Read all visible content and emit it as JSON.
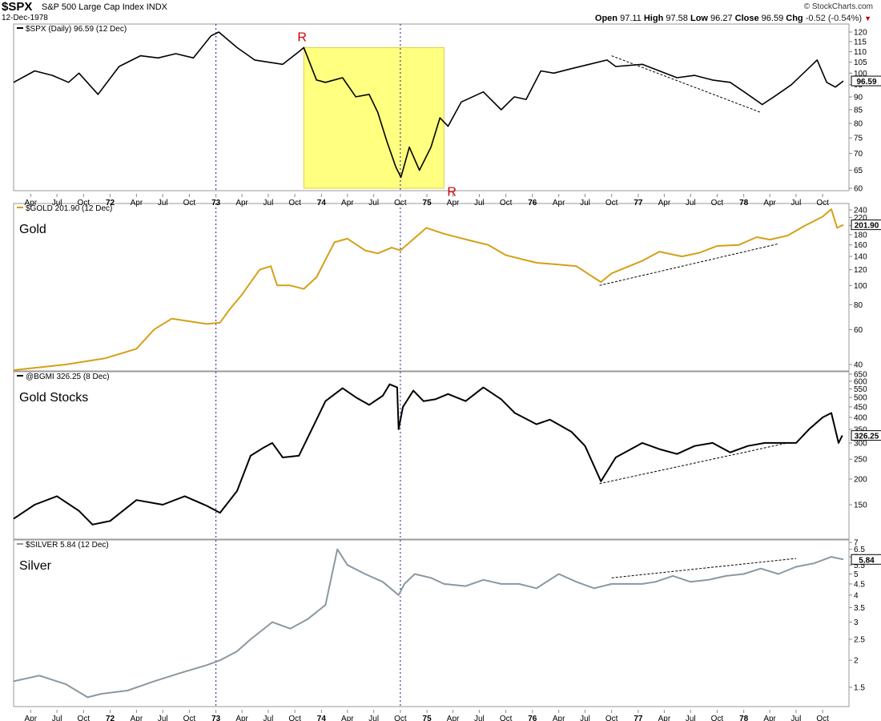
{
  "header": {
    "symbol": "$SPX",
    "name": "S&P 500 Large Cap Index",
    "exchange": "INDX",
    "date": "12-Dec-1978",
    "credit": "© StockCharts.com",
    "quote_labels": {
      "open": "Open",
      "high": "High",
      "low": "Low",
      "close": "Close",
      "chg": "Chg"
    },
    "quote": {
      "open": "97.11",
      "high": "97.58",
      "low": "96.27",
      "close": "96.59",
      "chg": "-0.52 (-0.54%)"
    }
  },
  "colors": {
    "spx": "#000000",
    "gold": "#d4a017",
    "gold_stocks": "#000000",
    "silver": "#8a98a2",
    "highlight": "#ffff80",
    "marker": "#cc0000",
    "vline": "#1a1a8c"
  },
  "time_axis": {
    "range": [
      "1971-02-01",
      "1978-12-31"
    ],
    "ticks": [
      {
        "date": "1971-04-01",
        "label": "Apr"
      },
      {
        "date": "1971-07-01",
        "label": "Jul"
      },
      {
        "date": "1971-10-01",
        "label": "Oct"
      },
      {
        "date": "1972-01-01",
        "label": "72"
      },
      {
        "date": "1972-04-01",
        "label": "Apr"
      },
      {
        "date": "1972-07-01",
        "label": "Jul"
      },
      {
        "date": "1972-10-01",
        "label": "Oct"
      },
      {
        "date": "1973-01-01",
        "label": "73"
      },
      {
        "date": "1973-04-01",
        "label": "Apr"
      },
      {
        "date": "1973-07-01",
        "label": "Jul"
      },
      {
        "date": "1973-10-01",
        "label": "Oct"
      },
      {
        "date": "1974-01-01",
        "label": "74"
      },
      {
        "date": "1974-04-01",
        "label": "Apr"
      },
      {
        "date": "1974-07-01",
        "label": "Jul"
      },
      {
        "date": "1974-10-01",
        "label": "Oct"
      },
      {
        "date": "1975-01-01",
        "label": "75"
      },
      {
        "date": "1975-04-01",
        "label": "Apr"
      },
      {
        "date": "1975-07-01",
        "label": "Jul"
      },
      {
        "date": "1975-10-01",
        "label": "Oct"
      },
      {
        "date": "1976-01-01",
        "label": "76"
      },
      {
        "date": "1976-04-01",
        "label": "Apr"
      },
      {
        "date": "1976-07-01",
        "label": "Jul"
      },
      {
        "date": "1976-10-01",
        "label": "Oct"
      },
      {
        "date": "1977-01-01",
        "label": "77"
      },
      {
        "date": "1977-04-01",
        "label": "Apr"
      },
      {
        "date": "1977-07-01",
        "label": "Jul"
      },
      {
        "date": "1977-10-01",
        "label": "Oct"
      },
      {
        "date": "1978-01-01",
        "label": "78"
      },
      {
        "date": "1978-04-01",
        "label": "Apr"
      },
      {
        "date": "1978-07-01",
        "label": "Jul"
      },
      {
        "date": "1978-10-01",
        "label": "Oct"
      }
    ],
    "vlines": [
      "1973-01-01",
      "1974-10-01"
    ]
  },
  "chart_data": [
    {
      "type": "line",
      "id": "spx",
      "legend": "$SPX (Daily) 96.59 (12 Dec)",
      "title": "",
      "scale": "log",
      "ylim": [
        58,
        125
      ],
      "yticks": [
        60,
        65,
        70,
        75,
        80,
        85,
        90,
        95,
        100,
        105,
        110,
        115,
        120
      ],
      "last_value": "96.59",
      "color": "#000000",
      "annotations": {
        "highlight": {
          "x": [
            "1973-11-01",
            "1975-03-01"
          ],
          "y": [
            60,
            112
          ]
        },
        "markers": [
          {
            "label": "R",
            "x": "1973-11-01",
            "y": 112
          },
          {
            "label": "R",
            "x": "1975-03-01",
            "y": 58
          }
        ],
        "trendline": {
          "x": [
            "1976-10-01",
            "1978-03-01"
          ],
          "y": [
            108,
            84
          ]
        }
      },
      "series": [
        {
          "x": [
            "1971-02-01",
            "1971-04-15",
            "1971-06-15",
            "1971-08-10",
            "1971-09-15",
            "1971-11-20",
            "1972-02-01",
            "1972-04-15",
            "1972-06-15",
            "1972-08-15",
            "1972-10-15",
            "1972-12-15",
            "1973-01-11",
            "1973-03-15",
            "1973-05-15",
            "1973-07-01",
            "1973-08-20",
            "1973-10-15",
            "1973-11-01",
            "1973-12-15",
            "1974-01-15",
            "1974-03-15",
            "1974-04-30",
            "1974-06-15",
            "1974-07-15",
            "1974-08-15",
            "1974-09-15",
            "1974-10-03",
            "1974-11-01",
            "1974-12-06",
            "1975-01-15",
            "1975-02-15",
            "1975-03-15",
            "1975-04-30",
            "1975-07-15",
            "1975-09-15",
            "1975-10-30",
            "1975-12-10",
            "1976-01-30",
            "1976-03-15",
            "1976-05-15",
            "1976-07-15",
            "1976-09-15",
            "1976-10-15",
            "1977-01-15",
            "1977-03-15",
            "1977-05-15",
            "1977-07-15",
            "1977-09-15",
            "1977-11-15",
            "1978-01-15",
            "1978-03-06",
            "1978-04-15",
            "1978-06-15",
            "1978-09-12",
            "1978-10-15",
            "1978-11-14",
            "1978-12-12"
          ],
          "values": [
            96,
            101,
            99,
            96,
            100,
            91,
            103,
            108,
            107,
            109,
            107,
            118,
            120,
            112,
            106,
            105,
            104,
            110,
            112,
            97,
            96,
            98,
            90,
            91,
            84,
            74,
            66,
            63,
            72,
            65,
            72,
            82,
            79,
            88,
            92,
            85,
            90,
            89,
            101,
            100,
            102,
            104,
            106,
            103,
            104,
            101,
            98,
            99,
            97,
            96,
            91,
            87,
            90,
            95,
            106,
            96,
            94,
            96.59
          ]
        }
      ]
    },
    {
      "type": "line",
      "id": "gold",
      "legend": "$GOLD 201.90 (12 Dec)",
      "title": "Gold",
      "scale": "log",
      "ylim": [
        35,
        250
      ],
      "yticks": [
        40,
        60,
        80,
        100,
        120,
        140,
        160,
        180,
        200,
        220,
        240
      ],
      "last_value": "201.90",
      "color": "#d4a017",
      "annotations": {
        "trendline": {
          "x": [
            "1976-08-20",
            "1978-05-01"
          ],
          "y": [
            100,
            162
          ]
        }
      },
      "series": [
        {
          "x": [
            "1971-02-01",
            "1971-08-01",
            "1971-12-15",
            "1972-04-01",
            "1972-06-01",
            "1972-08-01",
            "1972-12-01",
            "1973-01-15",
            "1973-02-15",
            "1973-04-01",
            "1973-06-01",
            "1973-07-10",
            "1973-08-01",
            "1973-09-15",
            "1973-11-01",
            "1973-12-15",
            "1974-02-15",
            "1974-04-01",
            "1974-06-01",
            "1974-07-15",
            "1974-09-01",
            "1974-10-01",
            "1974-12-30",
            "1975-03-01",
            "1975-06-01",
            "1975-08-01",
            "1975-10-01",
            "1975-12-01",
            "1976-01-15",
            "1976-03-15",
            "1976-06-01",
            "1976-08-25",
            "1976-10-01",
            "1977-01-15",
            "1977-03-15",
            "1977-06-01",
            "1977-08-01",
            "1977-10-01",
            "1977-12-15",
            "1978-02-15",
            "1978-04-01",
            "1978-06-01",
            "1978-08-01",
            "1978-10-01",
            "1978-10-31",
            "1978-11-20",
            "1978-12-12"
          ],
          "values": [
            37.5,
            40,
            43,
            48,
            60,
            68,
            64,
            65,
            75,
            90,
            120,
            125,
            100,
            100,
            96,
            110,
            165,
            172,
            150,
            145,
            155,
            150,
            195,
            182,
            168,
            160,
            142,
            135,
            130,
            128,
            125,
            104,
            115,
            133,
            148,
            140,
            146,
            158,
            160,
            175,
            170,
            178,
            200,
            222,
            242,
            195,
            201.9
          ]
        }
      ]
    },
    {
      "type": "line",
      "id": "gold_stocks",
      "legend": "@BGMI 326.25 (8 Dec)",
      "title": "Gold Stocks",
      "scale": "log",
      "ylim": [
        100,
        660
      ],
      "yticks": [
        150,
        200,
        250,
        300,
        350,
        400,
        450,
        500,
        550,
        600,
        650
      ],
      "last_value": "326.25",
      "color": "#000000",
      "annotations": {
        "trendline": {
          "x": [
            "1976-08-20",
            "1978-06-01"
          ],
          "y": [
            190,
            300
          ]
        }
      },
      "series": [
        {
          "x": [
            "1971-02-01",
            "1971-04-15",
            "1971-07-01",
            "1971-09-15",
            "1971-11-01",
            "1972-01-01",
            "1972-04-01",
            "1972-07-01",
            "1972-09-15",
            "1972-12-01",
            "1973-01-15",
            "1973-03-15",
            "1973-05-01",
            "1973-06-15",
            "1973-07-15",
            "1973-08-20",
            "1973-10-15",
            "1973-12-15",
            "1974-01-15",
            "1974-03-15",
            "1974-05-01",
            "1974-06-15",
            "1974-08-01",
            "1974-08-25",
            "1974-09-20",
            "1974-09-25",
            "1974-10-10",
            "1974-11-15",
            "1974-12-20",
            "1975-01-30",
            "1975-03-15",
            "1975-05-15",
            "1975-07-15",
            "1975-09-15",
            "1975-11-01",
            "1976-01-15",
            "1976-03-01",
            "1976-05-15",
            "1976-07-01",
            "1976-08-25",
            "1976-10-15",
            "1977-01-15",
            "1977-03-15",
            "1977-05-15",
            "1977-07-15",
            "1977-09-15",
            "1977-11-15",
            "1978-01-15",
            "1978-03-15",
            "1978-05-15",
            "1978-07-01",
            "1978-08-15",
            "1978-10-01",
            "1978-10-31",
            "1978-11-25",
            "1978-12-08"
          ],
          "values": [
            128,
            150,
            165,
            140,
            120,
            125,
            158,
            150,
            165,
            148,
            137,
            175,
            260,
            285,
            300,
            255,
            260,
            390,
            480,
            555,
            500,
            460,
            510,
            580,
            560,
            350,
            450,
            540,
            480,
            490,
            520,
            480,
            560,
            490,
            420,
            370,
            390,
            340,
            290,
            195,
            255,
            300,
            280,
            265,
            290,
            300,
            270,
            290,
            300,
            300,
            300,
            350,
            400,
            420,
            300,
            326.25
          ]
        }
      ]
    },
    {
      "type": "line",
      "id": "silver",
      "legend": "$SILVER 5.84 (12 Dec)",
      "title": "Silver",
      "scale": "log",
      "ylim": [
        1.3,
        7.2
      ],
      "yticks": [
        1.5,
        2.0,
        2.5,
        3.0,
        3.5,
        4.0,
        4.5,
        5.0,
        5.5,
        6.0,
        6.5,
        7.0
      ],
      "last_value": "5.84",
      "color": "#8a98a2",
      "annotations": {
        "trendline": {
          "x": [
            "1976-10-01",
            "1978-07-01"
          ],
          "y": [
            4.8,
            5.9
          ]
        }
      },
      "series": [
        {
          "x": [
            "1971-02-01",
            "1971-05-01",
            "1971-08-01",
            "1971-10-15",
            "1971-12-01",
            "1972-03-01",
            "1972-06-01",
            "1972-09-01",
            "1972-12-01",
            "1973-01-15",
            "1973-03-15",
            "1973-05-01",
            "1973-07-15",
            "1973-09-15",
            "1973-11-15",
            "1974-01-15",
            "1974-02-25",
            "1974-04-01",
            "1974-06-01",
            "1974-08-01",
            "1974-09-25",
            "1974-10-15",
            "1974-11-20",
            "1975-01-15",
            "1975-03-01",
            "1975-05-15",
            "1975-07-15",
            "1975-09-15",
            "1975-11-15",
            "1976-01-15",
            "1976-04-01",
            "1976-06-01",
            "1976-08-01",
            "1976-10-01",
            "1977-01-15",
            "1977-03-01",
            "1977-05-01",
            "1977-07-01",
            "1977-09-01",
            "1977-11-01",
            "1978-01-01",
            "1978-03-01",
            "1978-05-01",
            "1978-07-01",
            "1978-09-01",
            "1978-10-31",
            "1978-12-12"
          ],
          "values": [
            1.6,
            1.7,
            1.55,
            1.35,
            1.4,
            1.45,
            1.6,
            1.75,
            1.9,
            2.0,
            2.2,
            2.5,
            3.0,
            2.8,
            3.1,
            3.6,
            6.5,
            5.5,
            5.0,
            4.6,
            4.0,
            4.5,
            5.0,
            4.8,
            4.5,
            4.4,
            4.7,
            4.5,
            4.5,
            4.3,
            5.0,
            4.6,
            4.3,
            4.5,
            4.5,
            4.6,
            4.9,
            4.6,
            4.7,
            4.9,
            5.0,
            5.3,
            5.0,
            5.4,
            5.6,
            6.0,
            5.84
          ]
        }
      ]
    }
  ]
}
